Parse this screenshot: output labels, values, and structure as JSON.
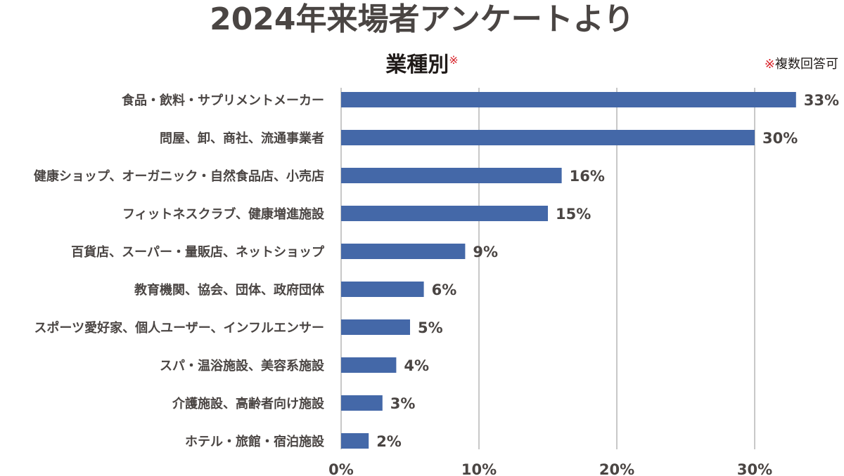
{
  "header": {
    "title": "2024年来場者アンケートより",
    "subtitle": "業種別",
    "subtitle_mark": "※",
    "note_mark": "※",
    "note_text": "複数回答可"
  },
  "colors": {
    "bar": "#4468a8",
    "grid": "#c8c8c8",
    "text": "#4a4543",
    "mark": "#d8232a"
  },
  "chart_data": {
    "type": "bar",
    "orientation": "horizontal",
    "title": "業種別",
    "categories": [
      "食品・飲料・サプリメントメーカー",
      "問屋、卸、商社、流通事業者",
      "健康ショップ、オーガニック・自然食品店、小売店",
      "フィットネスクラブ、健康増進施設",
      "百貨店、スーパー・量販店、ネットショップ",
      "教育機関、協会、団体、政府団体",
      "スポーツ愛好家、個人ユーザー、インフルエンサー",
      "スパ・温浴施設、美容系施設",
      "介護施設、高齢者向け施設",
      "ホテル・旅館・宿泊施設"
    ],
    "values": [
      33,
      30,
      16,
      15,
      9,
      6,
      5,
      4,
      3,
      2
    ],
    "data_labels": [
      "33%",
      "30%",
      "16%",
      "15%",
      "9%",
      "6%",
      "5%",
      "4%",
      "3%",
      "2%"
    ],
    "xticks": [
      0,
      10,
      20,
      30
    ],
    "xtick_labels": [
      "0%",
      "10%",
      "20%",
      "30%"
    ],
    "xlim": [
      0,
      35
    ],
    "grid": true,
    "legend": "none"
  }
}
